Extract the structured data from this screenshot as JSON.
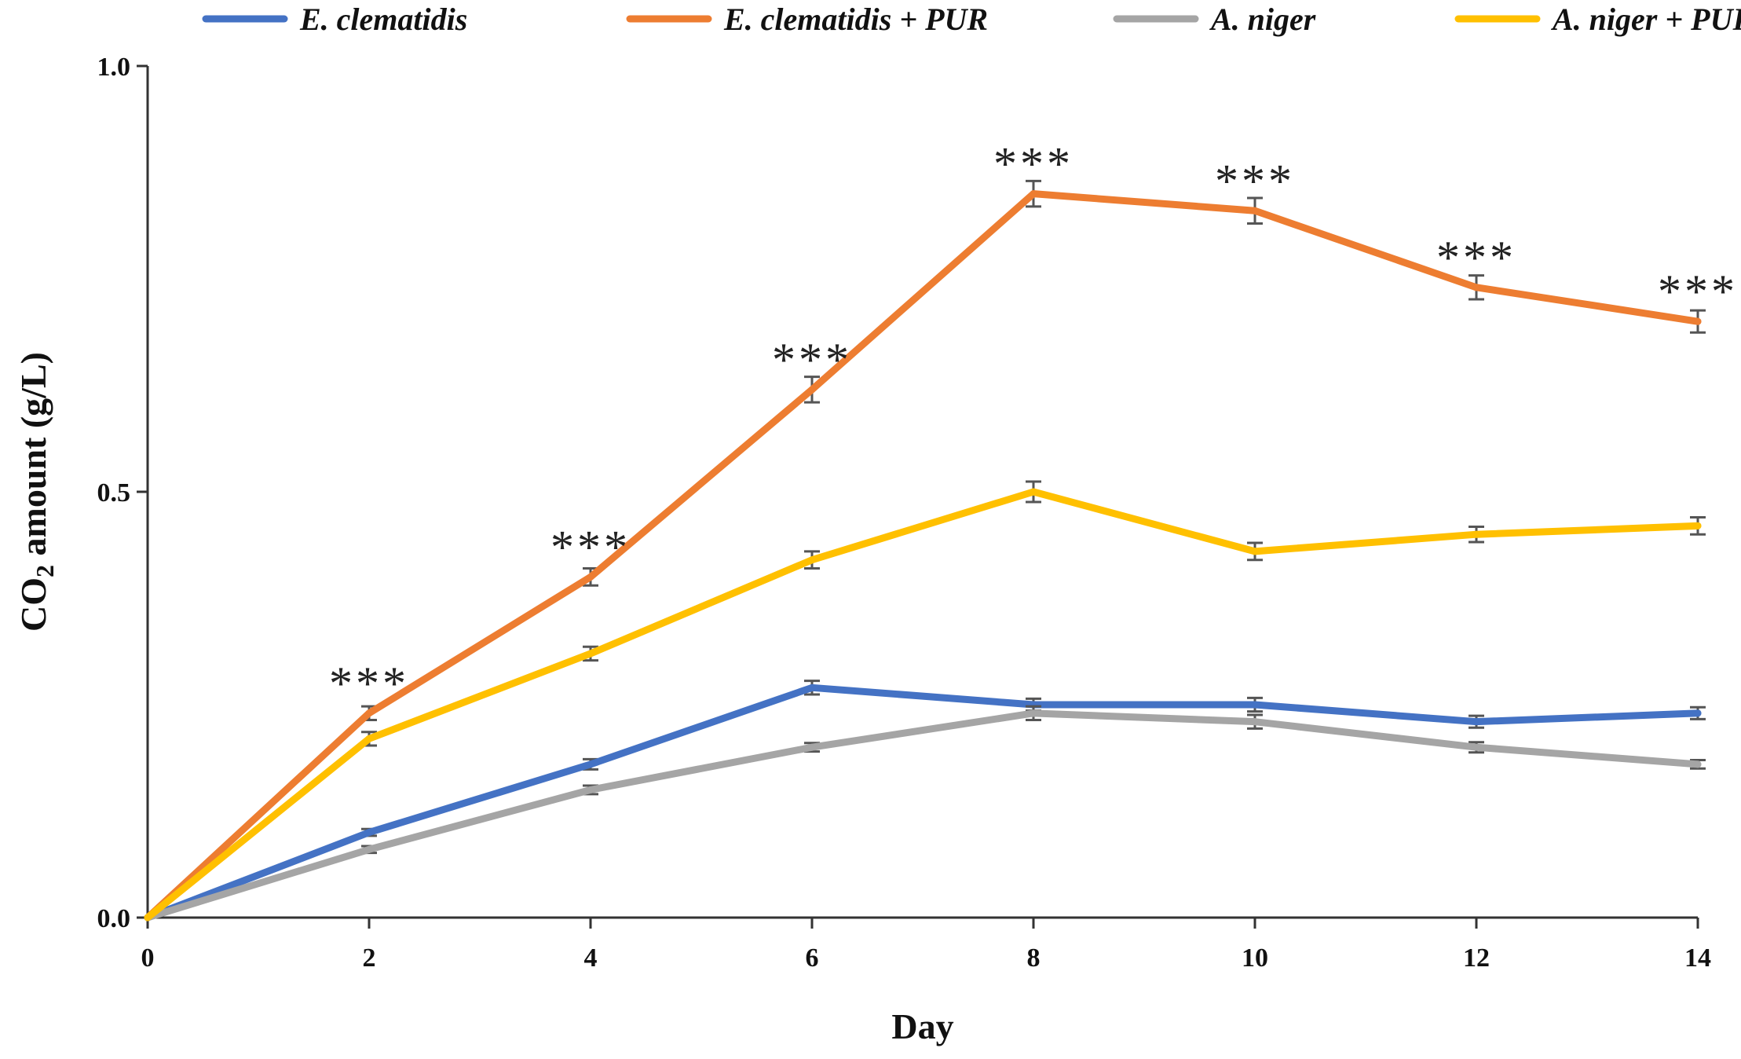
{
  "chart_data": {
    "type": "line",
    "title": "",
    "xlabel": "Day",
    "ylabel": "CO2 amount (g/L)",
    "ylabel_parts": {
      "base": "CO",
      "sub": "2",
      "rest": " amount (g/L)"
    },
    "x": [
      0,
      2,
      4,
      6,
      8,
      10,
      12,
      14
    ],
    "xlim": [
      0,
      14
    ],
    "ylim": [
      0,
      1
    ],
    "xticks": [
      "0",
      "2",
      "4",
      "6",
      "8",
      "10",
      "12",
      "14"
    ],
    "yticks": [
      {
        "value": 0,
        "label": "0.0"
      },
      {
        "value": 0.5,
        "label": "0.5"
      },
      {
        "value": 1,
        "label": "1.0"
      }
    ],
    "grid": false,
    "legend_position": "top",
    "series": [
      {
        "name": "E. clematidis",
        "color": "#4472C4",
        "values": [
          0,
          0.1,
          0.18,
          0.27,
          0.25,
          0.25,
          0.23,
          0.24
        ],
        "errors": [
          0,
          0.004,
          0.006,
          0.008,
          0.007,
          0.008,
          0.007,
          0.007
        ]
      },
      {
        "name": "E. clematidis + PUR",
        "color": "#ED7D31",
        "values": [
          0,
          0.24,
          0.4,
          0.62,
          0.85,
          0.83,
          0.74,
          0.7
        ],
        "errors": [
          0,
          0.008,
          0.01,
          0.015,
          0.015,
          0.015,
          0.014,
          0.013
        ]
      },
      {
        "name": "A. niger",
        "color": "#A5A5A5",
        "values": [
          0,
          0.08,
          0.15,
          0.2,
          0.24,
          0.23,
          0.2,
          0.18
        ],
        "errors": [
          0,
          0.004,
          0.005,
          0.005,
          0.008,
          0.008,
          0.006,
          0.005
        ]
      },
      {
        "name": "A. niger + PUR",
        "color": "#FFC000",
        "values": [
          0,
          0.21,
          0.31,
          0.42,
          0.5,
          0.43,
          0.45,
          0.46
        ],
        "errors": [
          0,
          0.008,
          0.008,
          0.01,
          0.012,
          0.01,
          0.009,
          0.01
        ]
      }
    ],
    "annotations": [
      {
        "x": 2,
        "y": 0.24,
        "text": "***"
      },
      {
        "x": 4,
        "y": 0.4,
        "text": "***"
      },
      {
        "x": 6,
        "y": 0.62,
        "text": "***"
      },
      {
        "x": 8,
        "y": 0.85,
        "text": "***"
      },
      {
        "x": 10,
        "y": 0.83,
        "text": "***"
      },
      {
        "x": 12,
        "y": 0.74,
        "text": "***"
      },
      {
        "x": 14,
        "y": 0.7,
        "text": "***"
      }
    ]
  }
}
